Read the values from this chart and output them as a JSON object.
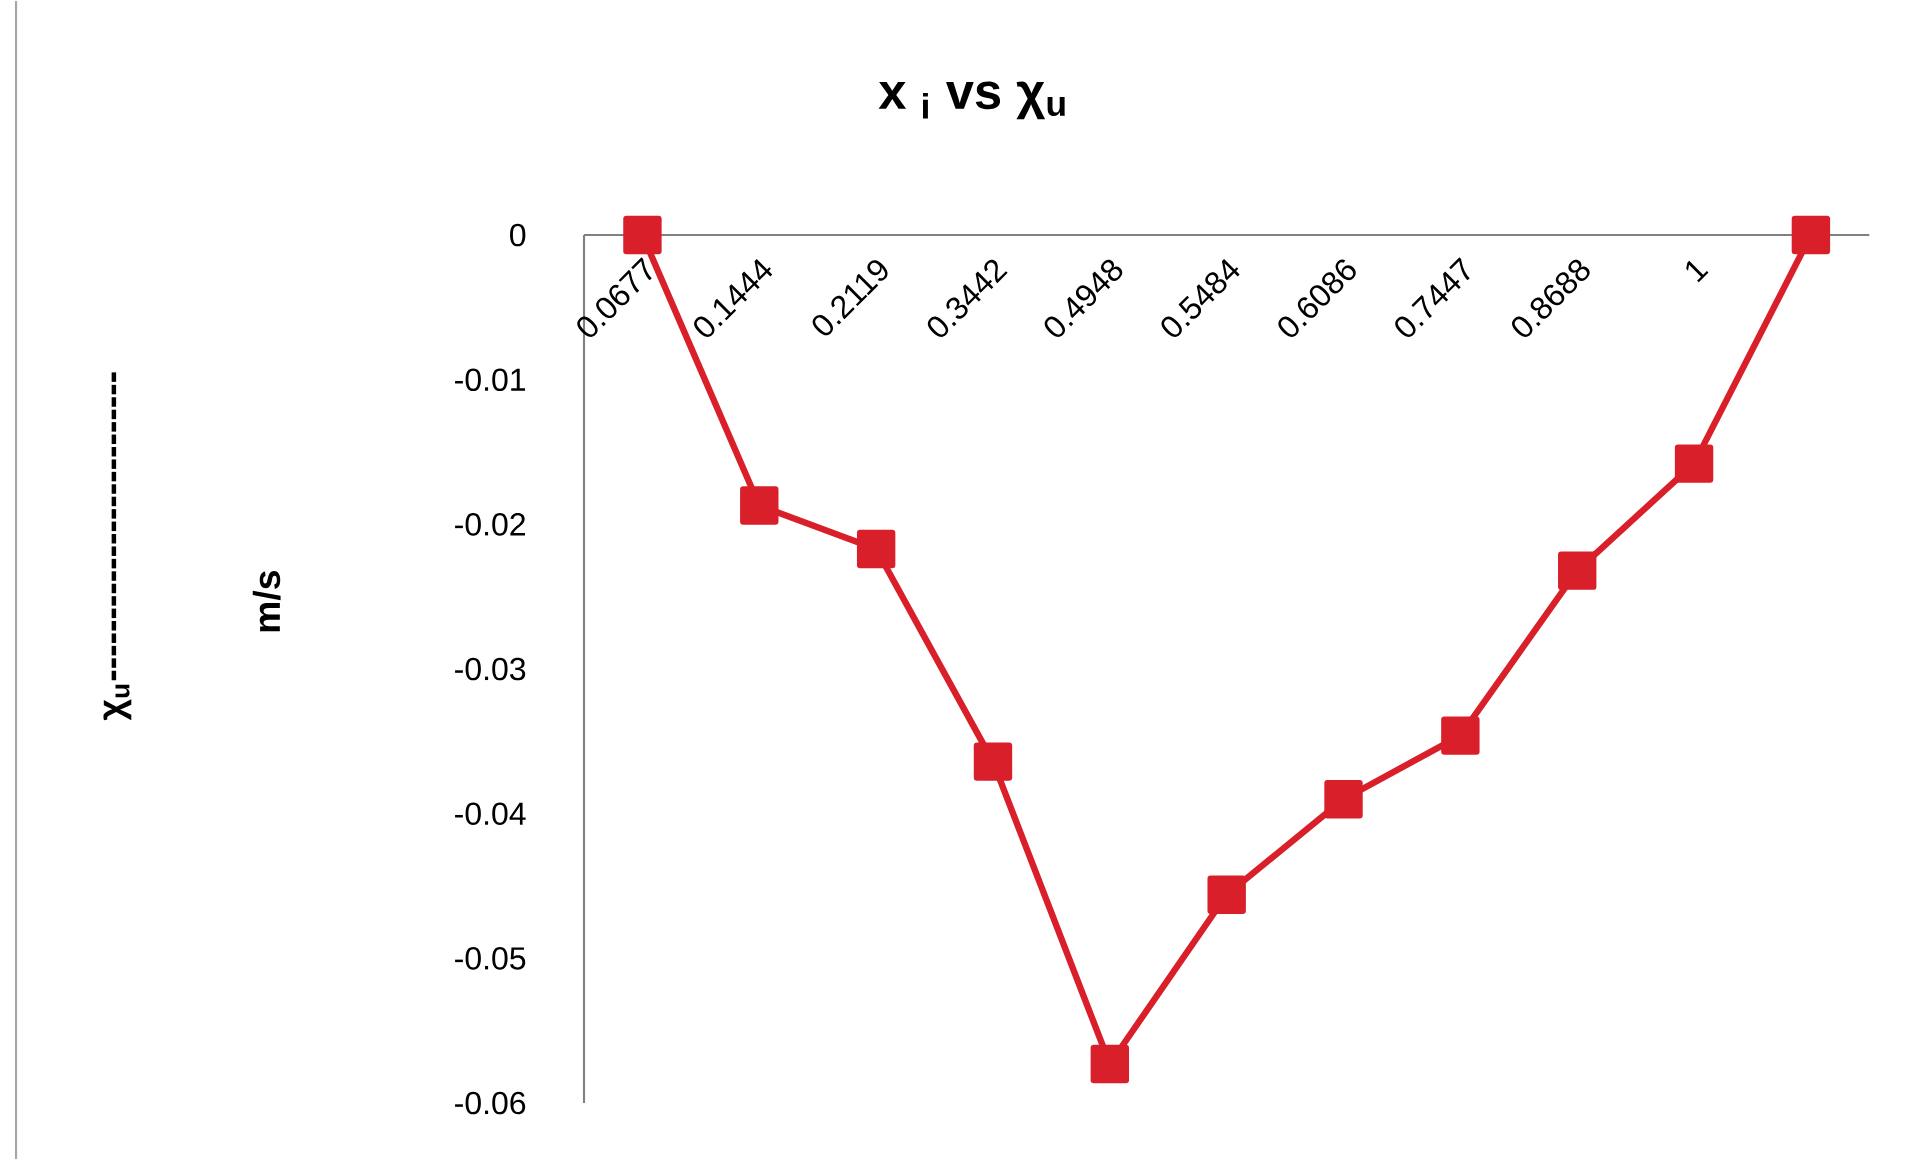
{
  "chart_data": {
    "type": "line",
    "title": "x $_{i}$ vs χ$_{u}$",
    "annotations": [
      "χ$_{u}$-------------------------",
      "m/s"
    ],
    "categories": [
      "0.0677",
      "0.1444",
      "0.2119",
      "0.3442",
      "0.4948",
      "0.5484",
      "0.6086",
      "0.7447",
      "0.8688",
      "1",
      null
    ],
    "series": [
      {
        "color": "#d9202a",
        "values": [
          0,
          -0.0187,
          -0.0217,
          -0.0364,
          -0.0573,
          -0.0456,
          -0.039,
          -0.0346,
          -0.0232,
          -0.0158,
          0
        ]
      }
    ],
    "ylim": [
      -0.06,
      0
    ],
    "yticks": [
      -0.06,
      -0.05,
      -0.04,
      -0.03,
      -0.02,
      -0.01,
      0
    ],
    "marker": "square",
    "line_style": "solid"
  }
}
